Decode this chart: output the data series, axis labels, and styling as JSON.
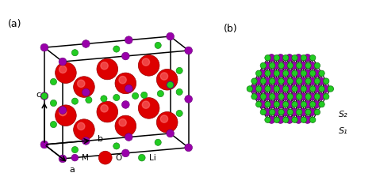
{
  "fig_width": 4.74,
  "fig_height": 2.38,
  "dpi": 100,
  "bg_color": "#ffffff",
  "panel_a_label": "(a)",
  "panel_b_label": "(b)",
  "color_M": "#9900AA",
  "color_O": "#DD0000",
  "color_Li": "#22CC22",
  "color_M_edge": "#660077",
  "color_O_edge": "#990000",
  "color_Li_edge": "#117711",
  "s1_label": "S₁",
  "s2_label": "S₂",
  "legend_M_r": 0.07,
  "legend_O_r": 0.14,
  "legend_Li_r": 0.07
}
